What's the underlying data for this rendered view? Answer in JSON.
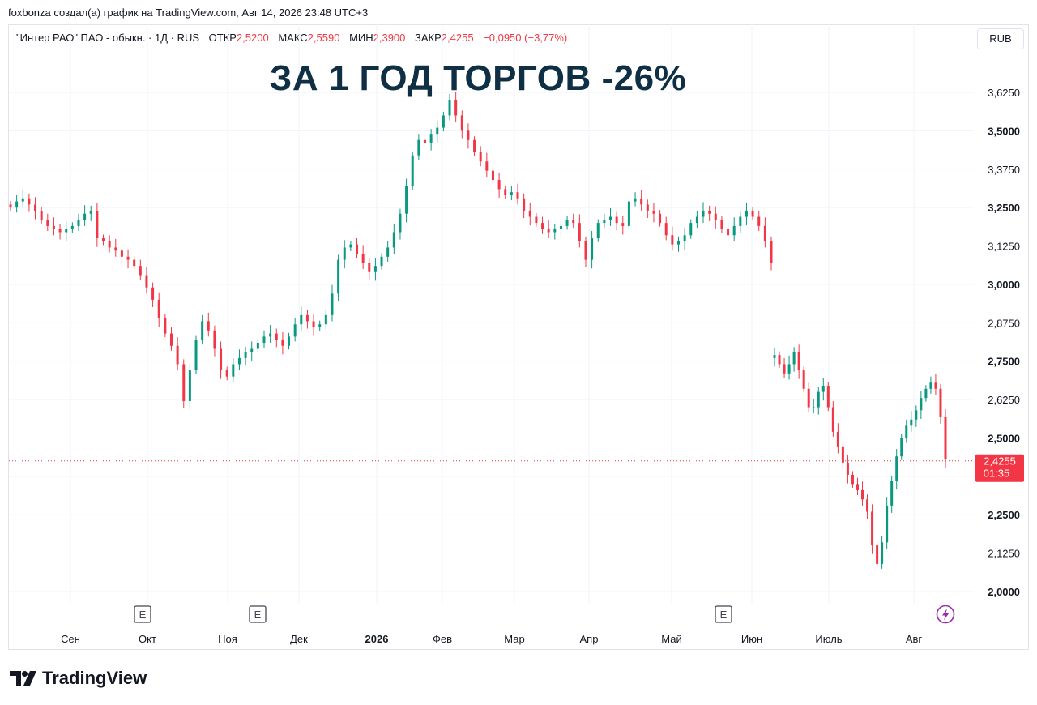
{
  "attribution": "foxbonza создал(а) график на TradingView.com, Авг 14, 2026 23:48 UTC+3",
  "legend": {
    "symbol": "\"Интер РАО\" ПАО - обыкн. · 1Д · RUS",
    "open_label": "ОТКР",
    "open": "2,5200",
    "high_label": "МАКС",
    "high": "2,5590",
    "low_label": "МИН",
    "low": "2,3900",
    "close_label": "ЗАКР",
    "close": "2,4255",
    "change": "−0,0950 (−3,77%)"
  },
  "currency": "RUB",
  "headline": "ЗА 1 ГОД ТОРГОВ -26%",
  "price_tag": {
    "value": "2,4255",
    "countdown": "01:35"
  },
  "event_marker_label": "E",
  "brand": "TradingView",
  "colors": {
    "up": "#089981",
    "down": "#f23645",
    "grid": "#f0f3fa",
    "headline": "#0f2f44"
  },
  "icons": {
    "event": "earnings-event-icon",
    "flash": "lightning-icon",
    "logo": "tradingview-logo-icon"
  },
  "chart_data": {
    "type": "candlestick",
    "x_ticks": [
      "Сен",
      "Окт",
      "Ноя",
      "Дек",
      "2026",
      "Фев",
      "Мар",
      "Апр",
      "Май",
      "Июн",
      "Июль",
      "Авг"
    ],
    "y_ticks": [
      2.0,
      2.125,
      2.25,
      2.375,
      2.5,
      2.625,
      2.75,
      2.875,
      3.0,
      3.125,
      3.25,
      3.375,
      3.5,
      3.625
    ],
    "y_tick_labels": [
      "2,0000",
      "2,1250",
      "2,2500",
      "",
      "2,5000",
      "2,6250",
      "2,7500",
      "2,8750",
      "3,0000",
      "3,1250",
      "3,2500",
      "3,3750",
      "3,5000",
      "3,6250"
    ],
    "ylim": [
      1.93,
      3.7
    ],
    "last_price": 2.4255,
    "event_markers_near": [
      "Окт",
      "Ноя",
      "Июн"
    ],
    "approx_closes": [
      3.25,
      3.27,
      3.28,
      3.26,
      3.24,
      3.21,
      3.19,
      3.18,
      3.17,
      3.18,
      3.19,
      3.21,
      3.23,
      3.24,
      3.15,
      3.14,
      3.12,
      3.11,
      3.09,
      3.08,
      3.06,
      3.03,
      2.99,
      2.95,
      2.89,
      2.84,
      2.8,
      2.74,
      2.62,
      2.72,
      2.82,
      2.88,
      2.85,
      2.79,
      2.72,
      2.7,
      2.74,
      2.76,
      2.78,
      2.79,
      2.81,
      2.83,
      2.84,
      2.82,
      2.8,
      2.83,
      2.87,
      2.9,
      2.88,
      2.86,
      2.87,
      2.9,
      2.97,
      3.08,
      3.12,
      3.13,
      3.1,
      3.07,
      3.04,
      3.06,
      3.09,
      3.12,
      3.17,
      3.23,
      3.32,
      3.42,
      3.47,
      3.46,
      3.49,
      3.51,
      3.55,
      3.6,
      3.55,
      3.5,
      3.47,
      3.43,
      3.4,
      3.37,
      3.34,
      3.31,
      3.29,
      3.3,
      3.28,
      3.24,
      3.22,
      3.2,
      3.18,
      3.17,
      3.18,
      3.19,
      3.21,
      3.2,
      3.14,
      3.08,
      3.15,
      3.2,
      3.21,
      3.22,
      3.2,
      3.19,
      3.27,
      3.28,
      3.26,
      3.24,
      3.23,
      3.2,
      3.16,
      3.13,
      3.14,
      3.16,
      3.2,
      3.22,
      3.24,
      3.23,
      3.21,
      3.18,
      3.16,
      3.19,
      3.22,
      3.24,
      3.22,
      3.19,
      3.14,
      3.07,
      2.77,
      2.74,
      2.71,
      2.74,
      2.78,
      2.72,
      2.66,
      2.6,
      2.6,
      2.65,
      2.67,
      2.6,
      2.52,
      2.47,
      2.42,
      2.38,
      2.35,
      2.33,
      2.3,
      2.26,
      2.15,
      2.09,
      2.16,
      2.28,
      2.36,
      2.44,
      2.5,
      2.54,
      2.56,
      2.59,
      2.63,
      2.66,
      2.68,
      2.66,
      2.57,
      2.43
    ]
  }
}
